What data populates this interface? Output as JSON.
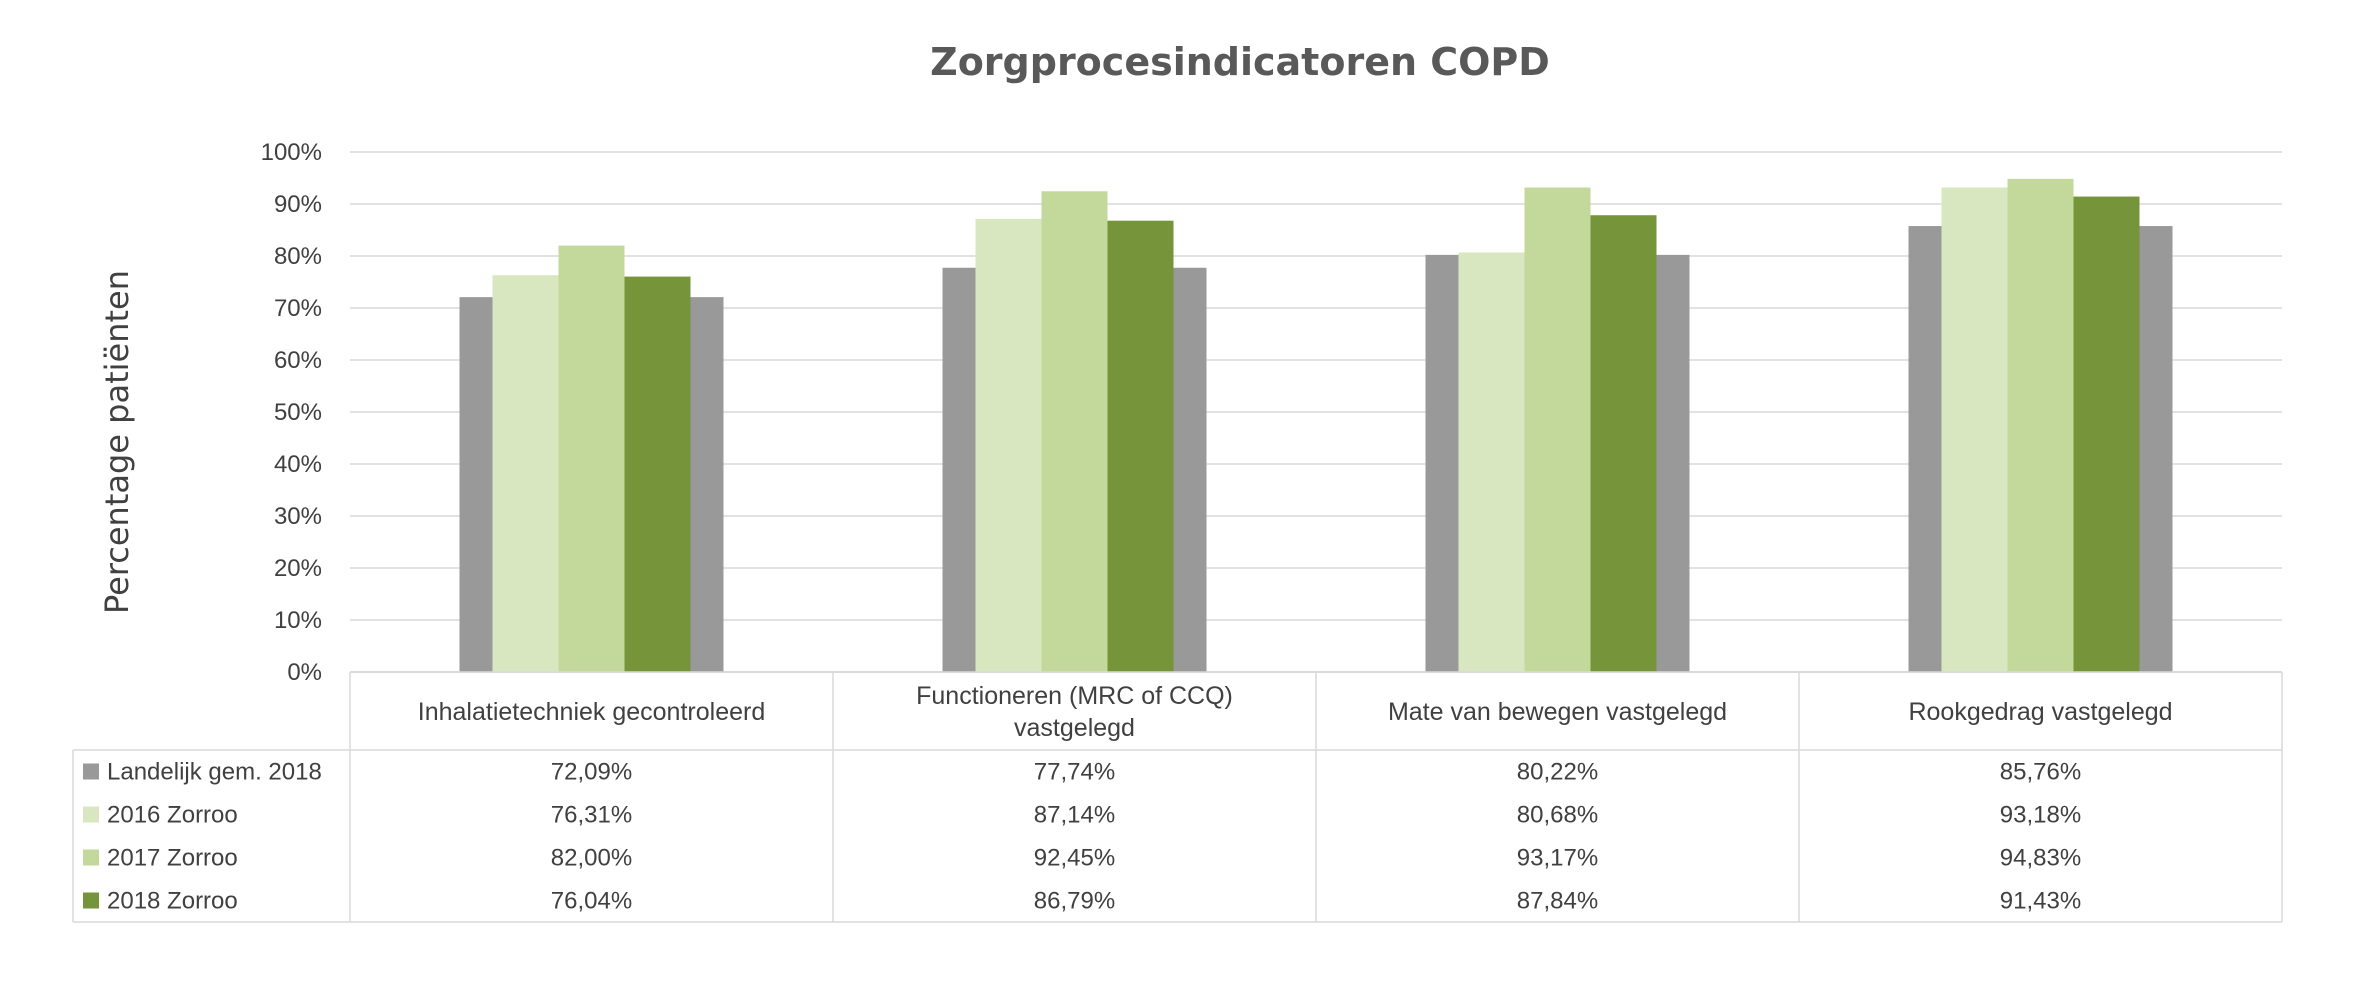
{
  "chart_data": {
    "type": "bar",
    "title": "Zorgprocesindicatoren COPD",
    "ylabel": "Percentage patiënten",
    "xlabel": "",
    "ylim": [
      0,
      100
    ],
    "yticks": [
      "0%",
      "10%",
      "20%",
      "30%",
      "40%",
      "50%",
      "60%",
      "70%",
      "80%",
      "90%",
      "100%"
    ],
    "grid": true,
    "legend": "data-table-left",
    "categories": [
      [
        "Inhalatietechniek gecontroleerd"
      ],
      [
        "Functioneren (MRC of CCQ)",
        "vastgelegd"
      ],
      [
        "Mate van bewegen vastgelegd"
      ],
      [
        "Rookgedrag vastgelegd"
      ]
    ],
    "series": [
      {
        "name": "Landelijk gem. 2018",
        "color": "#999999",
        "values": [
          72.09,
          77.74,
          80.22,
          85.76
        ],
        "labels": [
          "72,09%",
          "77,74%",
          "80,22%",
          "85,76%"
        ]
      },
      {
        "name": "2016 Zorroo",
        "color": "#d9e7c0",
        "values": [
          76.31,
          87.14,
          80.68,
          93.18
        ],
        "labels": [
          "76,31%",
          "87,14%",
          "80,68%",
          "93,18%"
        ]
      },
      {
        "name": "2017 Zorroo",
        "color": "#c3d99b",
        "values": [
          82.0,
          92.45,
          93.17,
          94.83
        ],
        "labels": [
          "82,00%",
          "92,45%",
          "93,17%",
          "94,83%"
        ]
      },
      {
        "name": "2018 Zorroo",
        "color": "#76943a",
        "values": [
          76.04,
          86.79,
          87.84,
          91.43
        ],
        "labels": [
          "76,04%",
          "86,79%",
          "87,84%",
          "91,43%"
        ]
      }
    ]
  }
}
